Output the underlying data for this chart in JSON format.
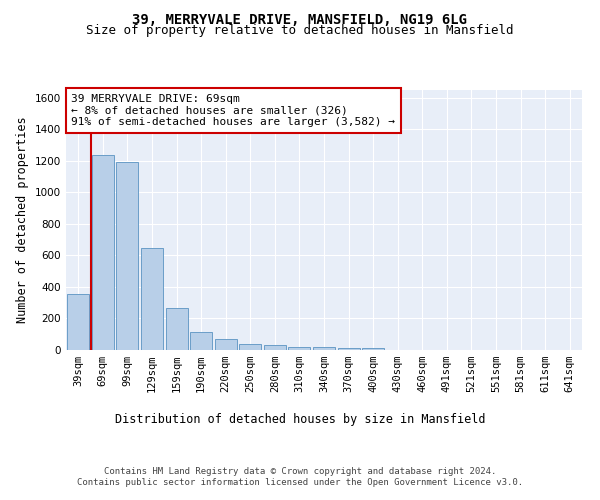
{
  "title_line1": "39, MERRYVALE DRIVE, MANSFIELD, NG19 6LG",
  "title_line2": "Size of property relative to detached houses in Mansfield",
  "xlabel": "Distribution of detached houses by size in Mansfield",
  "ylabel": "Number of detached properties",
  "categories": [
    "39sqm",
    "69sqm",
    "99sqm",
    "129sqm",
    "159sqm",
    "190sqm",
    "220sqm",
    "250sqm",
    "280sqm",
    "310sqm",
    "340sqm",
    "370sqm",
    "400sqm",
    "430sqm",
    "460sqm",
    "491sqm",
    "521sqm",
    "551sqm",
    "581sqm",
    "611sqm",
    "641sqm"
  ],
  "bar_values": [
    355,
    1240,
    1190,
    645,
    265,
    115,
    70,
    40,
    30,
    20,
    18,
    15,
    15,
    0,
    0,
    0,
    0,
    0,
    0,
    0,
    0
  ],
  "bar_color": "#b8cfe8",
  "bar_edge_color": "#6a9ec8",
  "vline_color": "#cc0000",
  "annotation_text": "39 MERRYVALE DRIVE: 69sqm\n← 8% of detached houses are smaller (326)\n91% of semi-detached houses are larger (3,582) →",
  "annotation_box_color": "#ffffff",
  "annotation_box_edge_color": "#cc0000",
  "ylim": [
    0,
    1650
  ],
  "yticks": [
    0,
    200,
    400,
    600,
    800,
    1000,
    1200,
    1400,
    1600
  ],
  "background_color": "#e8eef8",
  "grid_color": "#ffffff",
  "footer_text": "Contains HM Land Registry data © Crown copyright and database right 2024.\nContains public sector information licensed under the Open Government Licence v3.0.",
  "title_fontsize": 10,
  "subtitle_fontsize": 9,
  "axis_label_fontsize": 8.5,
  "tick_fontsize": 7.5,
  "annotation_fontsize": 8,
  "footer_fontsize": 6.5
}
